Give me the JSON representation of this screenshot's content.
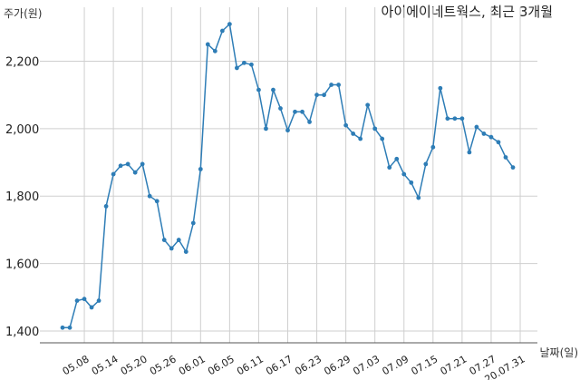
{
  "chart_data": {
    "type": "line",
    "title": "아이에이네트웍스, 최근 3개월",
    "ylabel": "주가(원)",
    "xlabel": "날짜(일)",
    "ylim": [
      1365,
      2360
    ],
    "yticks": [
      1400,
      1600,
      1800,
      2000,
      2200
    ],
    "ytick_labels": [
      "1,400",
      "1,600",
      "1,800",
      "2,000",
      "2,200"
    ],
    "xtick_labels": [
      "05.08",
      "05.14",
      "05.20",
      "05.26",
      "06.01",
      "06.05",
      "06.11",
      "06.17",
      "06.23",
      "06.29",
      "07.03",
      "07.09",
      "07.15",
      "07.21",
      "07.27",
      "20.07.31"
    ],
    "xtick_index": [
      3,
      7,
      11,
      15,
      19,
      23,
      27,
      31,
      35,
      39,
      43,
      47,
      51,
      55,
      59,
      63
    ],
    "grid": true,
    "series_color": "#2e7db6",
    "series": [
      {
        "values": [
          1410,
          1410,
          1490,
          1495,
          1470,
          1490,
          1770,
          1865,
          1890,
          1895,
          1870,
          1895,
          1800,
          1785,
          1670,
          1645,
          1670,
          1635,
          1720,
          1880,
          2250,
          2230,
          2290,
          2310,
          2180,
          2195,
          2190,
          2115,
          2000,
          2115,
          2060,
          1995,
          2050,
          2050,
          2020,
          2100,
          2100,
          2130,
          2130,
          2010,
          1985,
          1970,
          2070,
          2000,
          1970,
          1885,
          1910,
          1865,
          1840,
          1795,
          1895,
          1945,
          2120,
          2030,
          2030,
          2030,
          1930,
          2005,
          1985,
          1975,
          1960,
          1915,
          1885
        ]
      }
    ]
  }
}
